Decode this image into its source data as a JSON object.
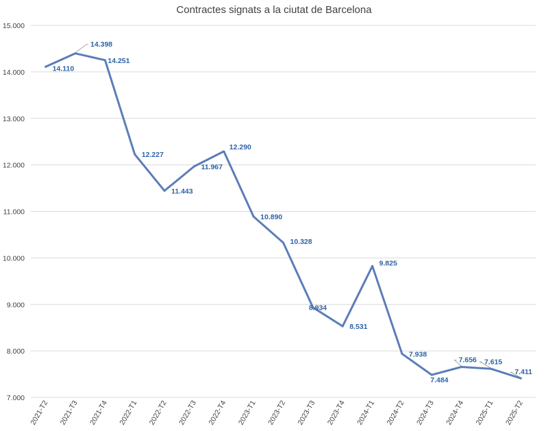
{
  "chart_data": {
    "type": "line",
    "title": "Contractes signats a la ciutat de Barcelona",
    "xlabel": "",
    "ylabel": "",
    "ylim": [
      7000,
      15000
    ],
    "yticks": [
      7000,
      8000,
      9000,
      10000,
      11000,
      12000,
      13000,
      14000,
      15000
    ],
    "ytick_labels": [
      "7.000",
      "8.000",
      "9.000",
      "10.000",
      "11.000",
      "12.000",
      "13.000",
      "14.000",
      "15.000"
    ],
    "grid": true,
    "categories": [
      "2021-T2",
      "2021-T3",
      "2021-T4",
      "2022-T1",
      "2022-T2",
      "2022-T3",
      "2022-T4",
      "2023-T1",
      "2023-T2",
      "2023-T3",
      "2023-T4",
      "2024-T1",
      "2024-T2",
      "2024-T3",
      "2024-T4",
      "2025-T1",
      "2025-T2"
    ],
    "series": [
      {
        "name": "Contractes signats",
        "color": "#5b7db8",
        "values": [
          14110,
          14398,
          14251,
          12227,
          11443,
          11967,
          12290,
          10890,
          10328,
          8934,
          8531,
          9825,
          7938,
          7484,
          7656,
          7615,
          7411
        ],
        "data_labels": [
          "14.110",
          "14.398",
          "14.251",
          "12.227",
          "11.443",
          "11.967",
          "12.290",
          "10.890",
          "10.328",
          "8.934",
          "8.531",
          "9.825",
          "7.938",
          "7.484",
          "7.656",
          "7.615",
          "7.411"
        ]
      }
    ],
    "label_color": "#2e63a6"
  }
}
